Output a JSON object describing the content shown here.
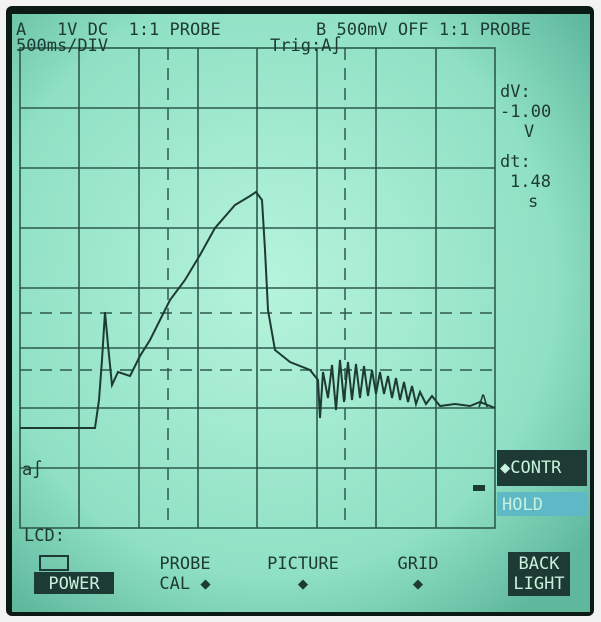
{
  "header": {
    "channel_a": "A   1V DC  1:1 PROBE",
    "channel_b": "B 500mV OFF 1:1 PROBE",
    "timebase": "500ms/DIV",
    "trigger": "Trig:A∫"
  },
  "readout": {
    "dv_label": "dV:",
    "dv_value": "-1.00",
    "dv_unit": "V",
    "dt_label": "dt:",
    "dt_value": "1.48",
    "dt_unit": "s"
  },
  "markers": {
    "trace_a": "A",
    "trigger_level": "a∫"
  },
  "side_menu": {
    "contrast": "◆CONTR",
    "hold": "HOLD"
  },
  "status": {
    "lcd": "LCD:"
  },
  "softkeys": [
    {
      "line1": "",
      "line2": "POWER"
    },
    {
      "line1": "PROBE",
      "line2": "CAL ◆"
    },
    {
      "line1": "PICTURE",
      "line2": "◆"
    },
    {
      "line1": "GRID",
      "line2": "◆"
    },
    {
      "line1": "BACK",
      "line2": "LIGHT"
    }
  ]
}
